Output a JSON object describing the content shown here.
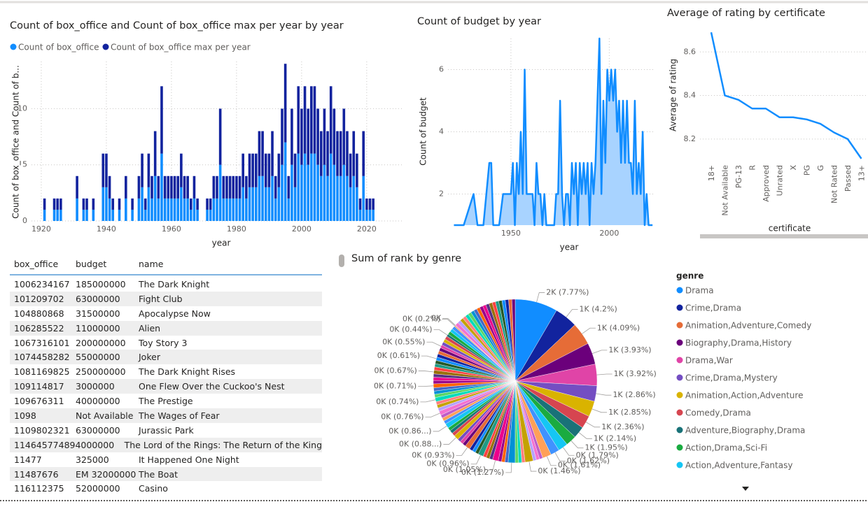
{
  "chart_data": [
    {
      "type": "bar",
      "stacked": true,
      "title": "Count of box_office and Count of box_office max per year by year",
      "xlabel": "year",
      "ylabel": "Count of box_office and Count of b...",
      "x": [
        1921,
        1924,
        1925,
        1926,
        1931,
        1933,
        1934,
        1936,
        1939,
        1940,
        1941,
        1942,
        1944,
        1946,
        1948,
        1950,
        1951,
        1952,
        1953,
        1954,
        1955,
        1956,
        1957,
        1958,
        1959,
        1960,
        1961,
        1962,
        1963,
        1964,
        1965,
        1966,
        1967,
        1968,
        1971,
        1972,
        1973,
        1974,
        1975,
        1976,
        1977,
        1978,
        1979,
        1980,
        1981,
        1982,
        1983,
        1984,
        1985,
        1986,
        1987,
        1988,
        1989,
        1990,
        1991,
        1992,
        1993,
        1994,
        1995,
        1996,
        1997,
        1998,
        1999,
        2000,
        2001,
        2002,
        2003,
        2004,
        2005,
        2006,
        2007,
        2008,
        2009,
        2010,
        2011,
        2012,
        2013,
        2014,
        2015,
        2016,
        2017,
        2018,
        2019,
        2020,
        2021,
        2022
      ],
      "series": [
        {
          "name": "Count of box_office",
          "color": "#118DFF",
          "values": [
            1,
            1,
            1,
            1,
            2,
            1,
            1,
            1,
            3,
            3,
            2,
            1,
            1,
            2,
            1,
            2,
            3,
            1,
            3,
            2,
            4,
            2,
            6,
            2,
            2,
            2,
            2,
            2,
            3,
            2,
            2,
            1,
            2,
            1,
            1,
            1,
            2,
            2,
            5,
            2,
            2,
            2,
            2,
            2,
            2,
            3,
            2,
            3,
            3,
            3,
            4,
            4,
            3,
            3,
            4,
            2,
            3,
            5,
            7,
            2,
            5,
            3,
            6,
            5,
            6,
            5,
            6,
            6,
            5,
            4,
            5,
            4,
            6,
            5,
            4,
            4,
            5,
            4,
            3,
            4,
            3,
            1,
            4,
            1,
            1,
            1
          ]
        },
        {
          "name": "Count of box_office max per year",
          "color": "#12239E",
          "values": [
            1,
            1,
            1,
            1,
            2,
            1,
            1,
            1,
            3,
            3,
            2,
            1,
            1,
            2,
            1,
            2,
            3,
            1,
            3,
            2,
            4,
            2,
            6,
            2,
            2,
            2,
            2,
            2,
            3,
            2,
            2,
            1,
            2,
            1,
            1,
            1,
            2,
            2,
            5,
            2,
            2,
            2,
            2,
            2,
            2,
            3,
            2,
            3,
            3,
            3,
            4,
            4,
            3,
            3,
            4,
            2,
            3,
            5,
            7,
            2,
            5,
            3,
            6,
            5,
            6,
            5,
            6,
            6,
            5,
            4,
            5,
            4,
            6,
            5,
            4,
            4,
            5,
            4,
            3,
            4,
            3,
            1,
            4,
            1,
            1,
            1
          ]
        }
      ],
      "xlim": [
        1917,
        2031
      ],
      "xticks": [
        1920,
        1940,
        1960,
        1980,
        2000,
        2020
      ],
      "ylim": [
        0,
        14.2
      ],
      "yticks": [
        0,
        5,
        10
      ],
      "grid": true,
      "legend": "top-left"
    },
    {
      "type": "area",
      "title": "Count of budget by year",
      "xlabel": "year",
      "ylabel": "Count of budget",
      "x": [
        1921,
        1924,
        1925,
        1926,
        1931,
        1933,
        1934,
        1936,
        1939,
        1940,
        1941,
        1942,
        1944,
        1946,
        1948,
        1950,
        1951,
        1952,
        1953,
        1954,
        1955,
        1956,
        1957,
        1958,
        1959,
        1960,
        1961,
        1962,
        1963,
        1964,
        1965,
        1966,
        1967,
        1968,
        1971,
        1972,
        1973,
        1974,
        1975,
        1976,
        1977,
        1978,
        1979,
        1980,
        1981,
        1982,
        1983,
        1984,
        1985,
        1986,
        1987,
        1988,
        1989,
        1990,
        1991,
        1992,
        1993,
        1994,
        1995,
        1996,
        1997,
        1998,
        1999,
        2000,
        2001,
        2002,
        2003,
        2004,
        2005,
        2006,
        2007,
        2008,
        2009,
        2010,
        2011,
        2012,
        2013,
        2014,
        2015,
        2016,
        2017,
        2018,
        2019,
        2020,
        2021,
        2022
      ],
      "values": [
        1,
        1,
        1,
        1,
        2,
        1,
        1,
        1,
        3,
        3,
        1,
        1,
        1,
        2,
        2,
        2,
        3,
        1,
        3,
        2,
        4,
        2,
        6,
        2,
        2,
        2,
        2,
        1,
        3,
        2,
        2,
        1,
        2,
        1,
        1,
        1,
        2,
        2,
        5,
        2,
        1,
        2,
        2,
        1,
        3,
        2,
        3,
        1,
        3,
        2,
        3,
        2,
        3,
        1,
        3,
        2,
        3,
        5,
        7,
        2,
        5,
        3,
        6,
        5,
        6,
        5,
        6,
        4,
        5,
        3,
        5,
        3,
        5,
        3,
        3,
        2,
        5,
        2,
        3,
        2,
        4,
        1,
        2,
        1,
        1,
        1
      ],
      "color": "#118DFF",
      "fill": "#A8D3FF",
      "xlim": [
        1918,
        2023
      ],
      "xticks": [
        1950,
        2000
      ],
      "ylim": [
        1,
        7
      ],
      "yticks": [
        2,
        4,
        6
      ],
      "grid": true
    },
    {
      "type": "line",
      "title": "Average of rating by certificate",
      "xlabel": "certificate",
      "ylabel": "Average of rating",
      "categories": [
        "18+",
        "Not Available",
        "PG-13",
        "R",
        "Approved",
        "Unrated",
        "X",
        "PG",
        "G",
        "Not Rated",
        "Passed",
        "13+"
      ],
      "values": [
        8.69,
        8.4,
        8.38,
        8.34,
        8.34,
        8.3,
        8.3,
        8.29,
        8.27,
        8.23,
        8.2,
        8.11
      ],
      "color": "#118DFF",
      "ylim": [
        8.1,
        8.71
      ],
      "yticks": [
        8.2,
        8.4,
        8.6
      ],
      "grid": true
    },
    {
      "type": "pie",
      "title": "Sum of rank by genre",
      "legend_title": "genre",
      "legend": "right",
      "categories": [
        "Drama",
        "Crime,Drama",
        "Animation,Adventure,Comedy",
        "Biography,Drama,History",
        "Drama,War",
        "Crime,Drama,Mystery",
        "Animation,Action,Adventure",
        "Comedy,Drama",
        "Adventure,Biography,Drama",
        "Action,Drama,Sci-Fi",
        "Action,Adventure,Fantasy",
        null,
        null,
        null,
        null,
        null,
        null,
        null,
        null,
        null,
        null,
        null,
        null,
        null,
        null,
        null,
        null,
        null,
        null,
        null,
        null,
        null,
        null,
        null,
        null,
        null,
        null,
        null,
        null,
        null,
        null,
        null,
        null,
        null,
        null,
        null,
        null,
        null,
        null,
        null,
        null,
        null,
        null,
        null,
        null,
        null,
        null,
        null,
        null,
        null,
        null,
        null,
        null,
        null,
        null,
        null,
        null,
        null,
        null,
        null,
        null,
        null,
        null,
        null,
        null,
        null,
        null,
        null,
        null,
        null,
        null,
        null,
        null,
        null,
        null,
        null,
        null,
        null,
        null,
        null,
        null,
        null,
        null,
        null
      ],
      "values": [
        7.77,
        4.2,
        4.09,
        3.93,
        3.92,
        2.86,
        2.85,
        2.36,
        2.14,
        1.95,
        1.79,
        1.62,
        1.61,
        0.6,
        0.6,
        0.6,
        1.46,
        0.6,
        0.6,
        0.6,
        1.27,
        0.6,
        0.6,
        0.6,
        1.05,
        0.6,
        0.6,
        0.6,
        0.96,
        0.6,
        0.6,
        0.6,
        0.93,
        0.6,
        0.6,
        0.6,
        0.88,
        0.6,
        0.6,
        0.6,
        0.86,
        0.6,
        0.6,
        0.6,
        0.76,
        0.6,
        0.6,
        0.6,
        0.74,
        0.6,
        0.6,
        0.6,
        0.71,
        0.6,
        0.6,
        0.6,
        0.67,
        0.6,
        0.6,
        0.6,
        0.61,
        0.6,
        0.6,
        0.6,
        0.55,
        0.6,
        0.6,
        0.6,
        0.44,
        0.6,
        0.6,
        0.6,
        0.2,
        0.1,
        0.6,
        0.6,
        0.6,
        0.6,
        0.6,
        0.6,
        0.6,
        0.6,
        0.6,
        0.6,
        0.6,
        0.6,
        0.6,
        0.6,
        0.6,
        0.6,
        0.6,
        0.6,
        0.6,
        0.6
      ],
      "value_labels": [
        "2K (7.77%)",
        "1K (4.2%)",
        "1K (4.09%)",
        "1K (3.93%)",
        "1K (3.92%)",
        "1K (2.86%)",
        "1K (2.85%)",
        "1K (2.36%)",
        "1K (2.14%)",
        "1K (1.95%)",
        "0K (1.79%)",
        "0K (1.62%)",
        "0K (1.61%)",
        null,
        null,
        null,
        "0K (1.46%)",
        null,
        null,
        null,
        "0K (1.27%)",
        null,
        null,
        null,
        "0K (1.05%)",
        null,
        null,
        null,
        "0K (0.96%)",
        null,
        null,
        null,
        "0K (0.93%)",
        null,
        null,
        null,
        "0K (0.88...)",
        null,
        null,
        null,
        "0K (0.86...)",
        null,
        null,
        null,
        "0K (0.76%)",
        null,
        null,
        null,
        "0K (0.74%)",
        null,
        null,
        null,
        "0K (0.71%)",
        null,
        null,
        null,
        "0K (0.67%)",
        null,
        null,
        null,
        "0K (0.61%)",
        null,
        null,
        null,
        "0K (0.55%)",
        null,
        null,
        null,
        "0K (0.44%)",
        null,
        null,
        null,
        "0K (0.2%)",
        "0K",
        null,
        null,
        null,
        null,
        null,
        null,
        null,
        null,
        null,
        null,
        null,
        null,
        null,
        null,
        null,
        null,
        null,
        null,
        null,
        null
      ],
      "colors": [
        "#118DFF",
        "#12239E",
        "#E66C37",
        "#6B007B",
        "#E044A7",
        "#744EC2",
        "#D9B300",
        "#D64550",
        "#197278",
        "#1AAB40",
        "#15C6F4",
        "#4092FF",
        "#FFA058",
        "#BE5DC9",
        "#F472D0",
        "#B5A1FF",
        "#C4A200",
        "#FF8080",
        "#00DBBC",
        "#5BD667",
        "#0091D5",
        "#4668C5",
        "#FF6300",
        "#99008A",
        "#EC008C",
        "#533285",
        "#99700A",
        "#FF4141",
        "#1F9A85",
        "#255A26"
      ]
    }
  ],
  "table": {
    "columns": [
      "box_office",
      "budget",
      "name"
    ],
    "rows": [
      [
        "1006234167",
        "185000000",
        "The Dark Knight"
      ],
      [
        "101209702",
        "63000000",
        "Fight Club"
      ],
      [
        "104880868",
        "31500000",
        "Apocalypse Now"
      ],
      [
        "106285522",
        "11000000",
        "Alien"
      ],
      [
        "1067316101",
        "200000000",
        "Toy Story 3"
      ],
      [
        "1074458282",
        "55000000",
        "Joker"
      ],
      [
        "1081169825",
        "250000000",
        "The Dark Knight Rises"
      ],
      [
        "109114817",
        "3000000",
        "One Flew Over the Cuckoo's Nest"
      ],
      [
        "109676311",
        "40000000",
        "The Prestige"
      ],
      [
        "1098",
        "Not Available",
        "The Wages of Fear"
      ],
      [
        "1109802321",
        "63000000",
        "Jurassic Park"
      ],
      [
        "1146457748",
        "94000000",
        "The Lord of the Rings: The Return of the King"
      ],
      [
        "11477",
        "325000",
        "It Happened One Night"
      ],
      [
        "11487676",
        "EM 32000000",
        "The Boat"
      ],
      [
        "116112375",
        "52000000",
        "Casino"
      ]
    ]
  }
}
